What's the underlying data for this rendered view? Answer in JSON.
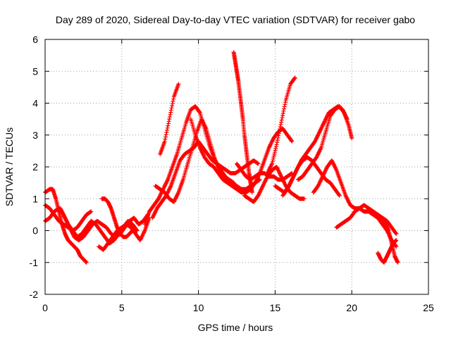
{
  "chart_data": {
    "type": "scatter",
    "title": "Day 289 of 2020, Sidereal Day-to-day VTEC variation (SDTVAR) for receiver gabo",
    "xlabel": "GPS time / hours",
    "ylabel": "SDTVAR / TECUs",
    "xlim": [
      0,
      25
    ],
    "ylim": [
      -2,
      6
    ],
    "xticks": [
      "0",
      "5",
      "10",
      "15",
      "20",
      "25"
    ],
    "yticks": [
      "-2",
      "-1",
      "0",
      "1",
      "2",
      "3",
      "4",
      "5",
      "6"
    ],
    "grid": true,
    "marker": "+",
    "color": "#ff0000",
    "series": [
      {
        "name": "s1",
        "x": [
          0.0,
          0.3,
          0.5,
          0.7,
          0.9,
          1.1,
          1.3,
          1.5,
          1.7,
          1.9,
          2.1,
          2.3,
          2.5,
          2.7
        ],
        "y": [
          1.2,
          1.3,
          1.3,
          1.0,
          0.6,
          0.2,
          -0.1,
          -0.3,
          -0.4,
          -0.5,
          -0.6,
          -0.8,
          -0.9,
          -1.0
        ]
      },
      {
        "name": "s2",
        "x": [
          0.0,
          0.3,
          0.6,
          0.9,
          1.2,
          1.5,
          1.8,
          2.1,
          2.4,
          2.7,
          3.0
        ],
        "y": [
          0.8,
          0.7,
          0.5,
          0.3,
          0.2,
          0.1,
          0.0,
          0.1,
          0.3,
          0.5,
          0.6
        ]
      },
      {
        "name": "s3",
        "x": [
          0.0,
          0.3,
          0.6,
          0.9,
          1.2,
          1.5,
          1.8,
          2.1,
          2.4,
          2.7,
          3.0,
          3.3,
          3.6,
          3.9,
          4.2,
          4.5,
          4.8,
          5.1,
          5.4,
          5.7,
          6.0
        ],
        "y": [
          0.3,
          0.4,
          0.6,
          0.7,
          0.5,
          0.2,
          0.0,
          -0.2,
          -0.1,
          0.1,
          0.3,
          0.2,
          0.0,
          -0.2,
          -0.4,
          -0.3,
          -0.1,
          0.1,
          0.3,
          0.2,
          0.0
        ]
      },
      {
        "name": "s4",
        "x": [
          1.0,
          1.3,
          1.6,
          1.9,
          2.2,
          2.5,
          2.8,
          3.1,
          3.4,
          3.7,
          4.0,
          4.3,
          4.6,
          4.9,
          5.2,
          5.5,
          5.8,
          6.1,
          6.4,
          6.7
        ],
        "y": [
          0.7,
          0.4,
          0.1,
          -0.2,
          -0.3,
          -0.2,
          0.0,
          0.2,
          0.3,
          0.2,
          0.1,
          -0.1,
          -0.2,
          -0.1,
          0.1,
          0.3,
          0.4,
          0.2,
          0.3,
          0.5
        ]
      },
      {
        "name": "s5",
        "x": [
          3.5,
          3.8,
          4.1,
          4.4,
          4.7,
          5.0,
          5.3,
          5.6,
          5.9,
          6.2,
          6.5,
          6.8
        ],
        "y": [
          -0.5,
          -0.6,
          -0.4,
          -0.2,
          0.0,
          0.1,
          0.2,
          0.1,
          -0.1,
          -0.3,
          0.0,
          0.4
        ]
      },
      {
        "name": "s6",
        "x": [
          3.7,
          3.9,
          4.1,
          4.3,
          4.5,
          4.7,
          4.9,
          5.1,
          5.3,
          5.5,
          5.7
        ],
        "y": [
          1.0,
          1.0,
          0.9,
          0.7,
          0.4,
          0.1,
          -0.1,
          -0.2,
          -0.2,
          -0.1,
          0.0
        ]
      },
      {
        "name": "s7",
        "x": [
          6.5,
          6.8,
          7.1,
          7.4,
          7.7,
          8.0,
          8.3,
          8.6,
          8.9,
          9.2,
          9.5,
          9.8,
          10.1,
          10.4,
          10.7,
          11.0,
          11.3,
          11.6,
          11.9,
          12.2,
          12.5,
          12.8,
          13.1,
          13.4,
          13.7,
          14.0
        ],
        "y": [
          0.2,
          0.6,
          0.8,
          1.0,
          1.3,
          1.6,
          2.0,
          2.4,
          2.9,
          3.4,
          3.8,
          3.9,
          3.7,
          3.2,
          2.7,
          2.3,
          2.0,
          1.8,
          1.6,
          1.5,
          1.4,
          1.3,
          1.3,
          1.4,
          1.5,
          1.6
        ]
      },
      {
        "name": "s8",
        "x": [
          7.0,
          7.3,
          7.6,
          7.9,
          8.2,
          8.5,
          8.8,
          9.1,
          9.4,
          9.7,
          10.0,
          10.3,
          10.6,
          10.9,
          11.2,
          11.5,
          11.8,
          12.1,
          12.4,
          12.7,
          13.0,
          13.3,
          13.6,
          13.9
        ],
        "y": [
          0.4,
          0.7,
          0.9,
          1.1,
          1.4,
          1.8,
          2.2,
          2.4,
          2.5,
          2.6,
          2.8,
          2.6,
          2.4,
          2.2,
          2.1,
          2.0,
          1.9,
          1.8,
          1.8,
          1.9,
          2.0,
          2.1,
          2.2,
          2.1
        ]
      },
      {
        "name": "s9",
        "x": [
          7.5,
          7.8,
          8.1,
          8.4,
          8.7
        ],
        "y": [
          2.4,
          2.8,
          3.5,
          4.2,
          4.6
        ]
      },
      {
        "name": "s10",
        "x": [
          7.2,
          7.5,
          7.8,
          8.1,
          8.4,
          8.7,
          9.0,
          9.3,
          9.6,
          9.9,
          10.2,
          10.5,
          10.8,
          11.1,
          11.4,
          11.7,
          12.0,
          12.3
        ],
        "y": [
          1.4,
          1.3,
          1.2,
          1.0,
          0.9,
          1.2,
          1.6,
          2.1,
          2.6,
          3.1,
          3.5,
          3.2,
          2.7,
          2.2,
          1.9,
          1.7,
          1.6,
          1.5
        ]
      },
      {
        "name": "s11",
        "x": [
          9.5,
          9.8,
          10.1,
          10.4,
          10.7,
          11.0,
          11.3,
          11.6,
          11.9,
          12.2,
          12.5,
          12.8,
          13.1,
          13.4,
          13.7,
          14.0,
          14.3,
          14.6,
          14.9,
          15.2,
          15.5,
          15.8,
          16.1
        ],
        "y": [
          3.5,
          3.0,
          2.6,
          2.3,
          2.1,
          2.0,
          1.8,
          1.6,
          1.5,
          1.4,
          1.3,
          1.2,
          1.2,
          1.3,
          1.5,
          1.8,
          2.2,
          2.6,
          2.9,
          3.1,
          3.2,
          3.0,
          2.8
        ]
      },
      {
        "name": "s12",
        "x": [
          12.3,
          12.4,
          12.5,
          12.6,
          12.7,
          12.8,
          12.9,
          13.0,
          13.1,
          13.2,
          13.3,
          13.4,
          13.5
        ],
        "y": [
          5.6,
          5.3,
          5.0,
          4.7,
          4.3,
          3.9,
          3.5,
          3.0,
          2.6,
          2.2,
          1.8,
          1.5,
          1.2
        ]
      },
      {
        "name": "s13",
        "x": [
          12.5,
          12.8,
          13.1,
          13.4,
          13.7,
          14.0,
          14.3,
          14.6,
          14.9,
          15.2,
          15.5,
          15.8,
          16.1
        ],
        "y": [
          2.1,
          1.9,
          1.7,
          1.6,
          1.7,
          1.8,
          1.8,
          1.7,
          1.7,
          1.6,
          1.6,
          1.7,
          1.8
        ]
      },
      {
        "name": "s14",
        "x": [
          13.0,
          13.3,
          13.6,
          13.9,
          14.2,
          14.5,
          14.8,
          15.1,
          15.4,
          15.7,
          16.0,
          16.3,
          16.6,
          16.9
        ],
        "y": [
          1.1,
          1.0,
          0.9,
          1.1,
          1.4,
          1.7,
          1.9,
          2.0,
          1.7,
          1.4,
          1.2,
          1.1,
          1.0,
          1.0
        ]
      },
      {
        "name": "s15",
        "x": [
          14.5,
          14.8,
          15.1,
          15.4,
          15.7,
          16.0,
          16.3
        ],
        "y": [
          1.8,
          2.1,
          2.7,
          3.4,
          4.1,
          4.6,
          4.8
        ]
      },
      {
        "name": "s16",
        "x": [
          15.0,
          15.3,
          15.6,
          15.9,
          16.2,
          16.5,
          16.8,
          17.1,
          17.4,
          17.7,
          18.0,
          18.3,
          18.6,
          18.9,
          19.2
        ],
        "y": [
          1.4,
          1.3,
          1.2,
          1.4,
          1.7,
          2.0,
          2.2,
          2.3,
          2.2,
          2.0,
          1.8,
          1.6,
          1.5,
          1.3,
          1.1
        ]
      },
      {
        "name": "s17",
        "x": [
          15.5,
          15.8,
          16.1,
          16.4,
          16.7,
          17.0,
          17.3,
          17.6,
          17.9,
          18.2,
          18.5,
          18.8,
          19.1,
          19.4,
          19.7
        ],
        "y": [
          1.1,
          1.3,
          1.6,
          1.9,
          2.2,
          2.4,
          2.6,
          2.8,
          3.1,
          3.4,
          3.7,
          3.8,
          3.9,
          3.8,
          3.5
        ]
      },
      {
        "name": "s18",
        "x": [
          16.5,
          16.8,
          17.1,
          17.4,
          17.7,
          18.0,
          18.3,
          18.6,
          18.9,
          19.2,
          19.5,
          19.8,
          20.0
        ],
        "y": [
          1.6,
          1.7,
          1.9,
          2.1,
          2.3,
          2.6,
          3.1,
          3.6,
          3.8,
          3.9,
          3.7,
          3.3,
          2.9
        ]
      },
      {
        "name": "s19",
        "x": [
          17.5,
          17.8,
          18.1,
          18.4,
          18.7,
          19.0,
          19.3,
          19.6,
          19.9,
          20.2,
          20.5,
          20.8,
          21.1,
          21.4,
          21.7,
          22.0,
          22.3,
          22.6,
          22.9
        ],
        "y": [
          1.2,
          1.4,
          1.7,
          2.0,
          2.2,
          1.9,
          1.5,
          1.1,
          0.8,
          0.7,
          0.7,
          0.6,
          0.6,
          0.5,
          0.4,
          0.2,
          0.0,
          -0.3,
          -0.5
        ]
      },
      {
        "name": "s20",
        "x": [
          19.0,
          19.3,
          19.6,
          19.9,
          20.2,
          20.5,
          20.8,
          21.1,
          21.4,
          21.7,
          22.0,
          22.3,
          22.6,
          22.9
        ],
        "y": [
          0.1,
          0.2,
          0.3,
          0.4,
          0.6,
          0.7,
          0.8,
          0.7,
          0.6,
          0.5,
          0.4,
          0.3,
          0.1,
          -0.1
        ]
      },
      {
        "name": "s21",
        "x": [
          21.7,
          21.9,
          22.1,
          22.3,
          22.5,
          22.7,
          22.9
        ],
        "y": [
          -0.7,
          -0.9,
          -1.0,
          -0.8,
          -0.6,
          -0.4,
          -0.3
        ]
      },
      {
        "name": "s22",
        "x": [
          22.0,
          22.2,
          22.4,
          22.6,
          22.8,
          23.0
        ],
        "y": [
          0.4,
          0.2,
          0.0,
          -0.4,
          -0.8,
          -1.0
        ]
      }
    ]
  }
}
